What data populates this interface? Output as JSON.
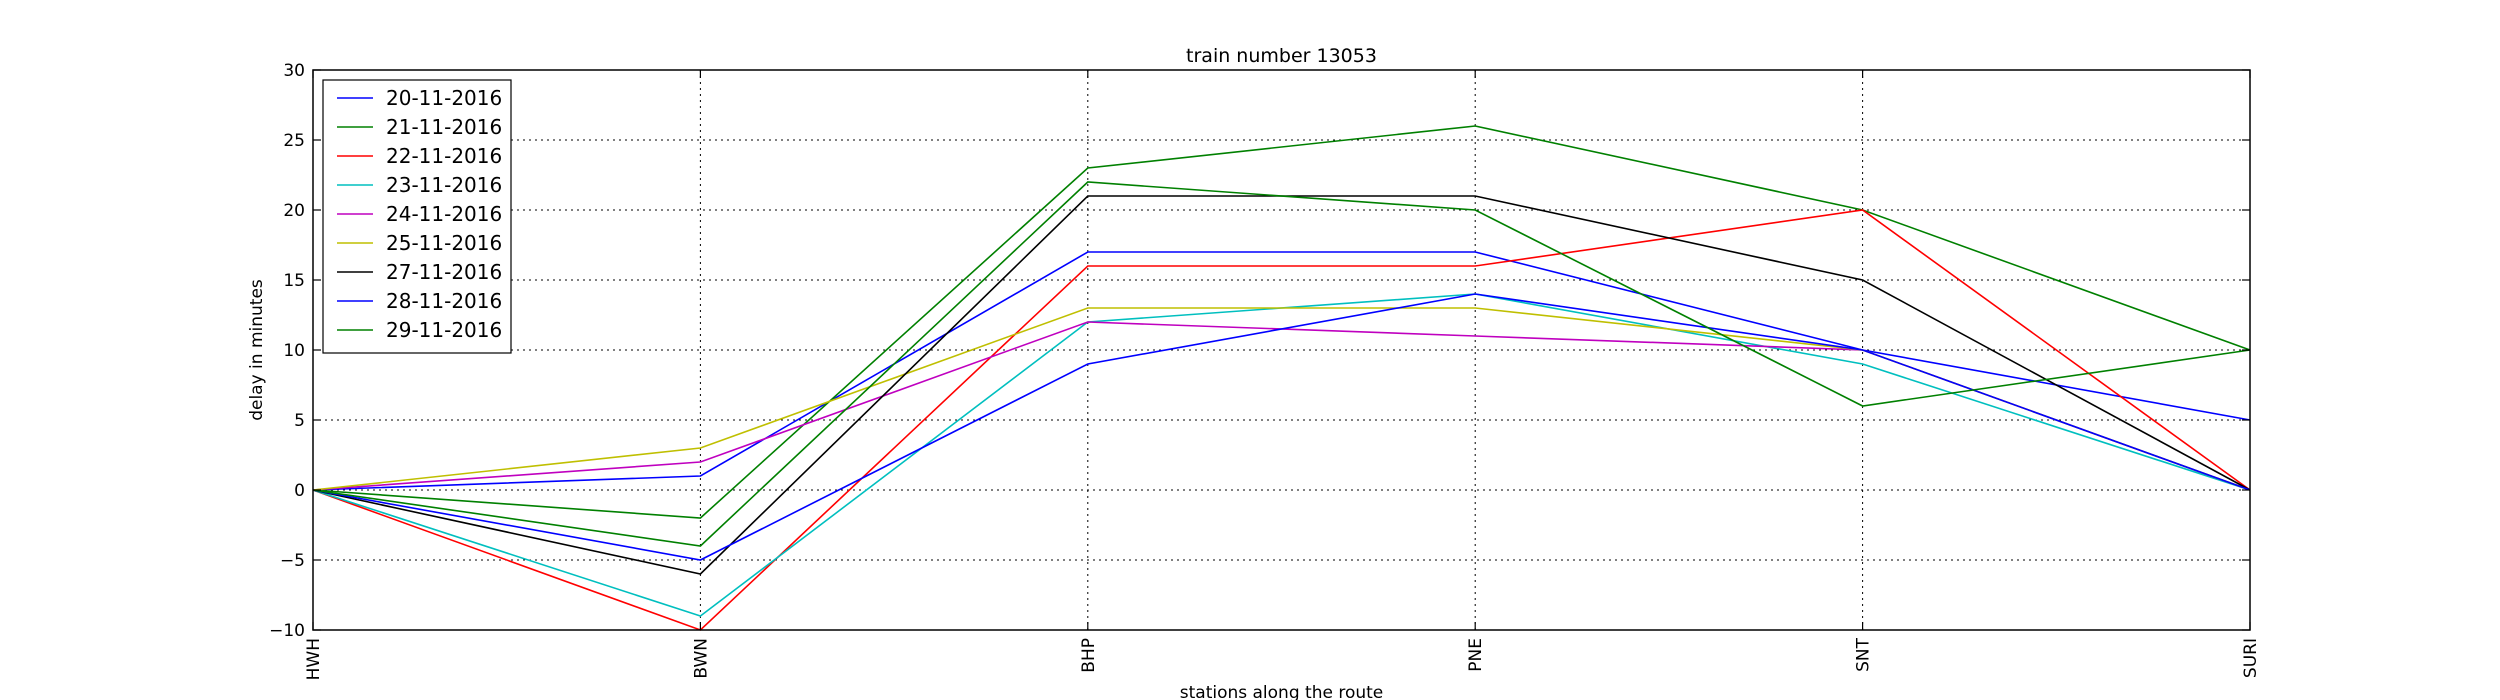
{
  "chart_data": {
    "type": "line",
    "title": "train number 13053",
    "xlabel": "stations along the route",
    "ylabel": "delay in minutes",
    "categories": [
      "HWH",
      "BWN",
      "BHP",
      "PNE",
      "SNT",
      "SURI"
    ],
    "ylim": [
      -10,
      30
    ],
    "yticks": [
      -10,
      -5,
      0,
      5,
      10,
      15,
      20,
      25,
      30
    ],
    "ytick_labels": [
      "−10",
      "−5",
      "0",
      "5",
      "10",
      "15",
      "20",
      "25",
      "30"
    ],
    "grid": true,
    "legend_position": "top-left",
    "series": [
      {
        "name": "20-11-2016",
        "color": "#0000ff",
        "values": [
          0,
          1,
          17,
          17,
          10,
          5
        ]
      },
      {
        "name": "21-11-2016",
        "color": "#008000",
        "values": [
          0,
          -2,
          23,
          26,
          20,
          10
        ]
      },
      {
        "name": "22-11-2016",
        "color": "#ff0000",
        "values": [
          0,
          -10,
          16,
          16,
          20,
          0
        ]
      },
      {
        "name": "23-11-2016",
        "color": "#00bfbf",
        "values": [
          0,
          -9,
          12,
          14,
          9,
          0
        ]
      },
      {
        "name": "24-11-2016",
        "color": "#bf00bf",
        "values": [
          0,
          2,
          12,
          11,
          10,
          0
        ]
      },
      {
        "name": "25-11-2016",
        "color": "#bfbf00",
        "values": [
          0,
          3,
          13,
          13,
          10,
          0
        ]
      },
      {
        "name": "27-11-2016",
        "color": "#000000",
        "values": [
          0,
          -6,
          21,
          21,
          15,
          0
        ]
      },
      {
        "name": "28-11-2016",
        "color": "#0000ff",
        "values": [
          0,
          -5,
          9,
          14,
          10,
          0
        ]
      },
      {
        "name": "29-11-2016",
        "color": "#008000",
        "values": [
          0,
          -4,
          22,
          20,
          6,
          10
        ]
      }
    ]
  }
}
